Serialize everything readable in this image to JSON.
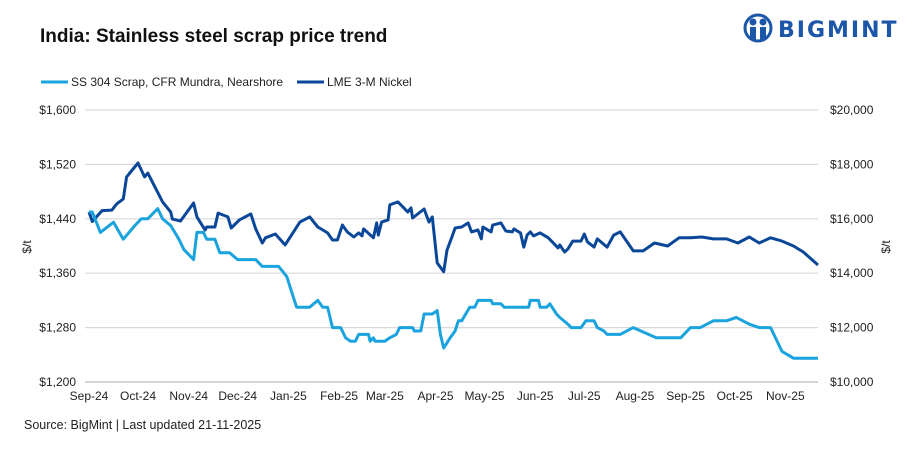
{
  "brand": {
    "name": "BIGMINT",
    "color": "#1c56a8"
  },
  "source": "Source: BigMint | Last updated 21-11-2025",
  "chart_data": {
    "type": "line",
    "title": "India: Stainless steel scrap price trend",
    "legend_position": "top-left",
    "grid": "horizontal",
    "x_ticks": [
      "Sep-24",
      "Oct-24",
      "Nov-24",
      "Dec-24",
      "Jan-25",
      "Feb-25",
      "Mar-25",
      "Apr-25",
      "May-25",
      "Jun-25",
      "Jul-25",
      "Aug-25",
      "Sep-25",
      "Oct-25",
      "Nov-25"
    ],
    "x_tick_dates": [
      "2024-09-01",
      "2024-10-01",
      "2024-11-01",
      "2024-12-01",
      "2025-01-01",
      "2025-02-01",
      "2025-03-01",
      "2025-04-01",
      "2025-05-01",
      "2025-06-01",
      "2025-07-01",
      "2025-08-01",
      "2025-09-01",
      "2025-10-01",
      "2025-11-01"
    ],
    "xlim": [
      "2024-09-01",
      "2025-11-21"
    ],
    "y_left": {
      "label": "$/t",
      "lim": [
        1200,
        1600
      ],
      "ticks": [
        "$1,200",
        "$1,280",
        "$1,360",
        "$1,440",
        "$1,520",
        "$1,600"
      ]
    },
    "y_right": {
      "label": "$/t",
      "lim": [
        10000,
        20000
      ],
      "ticks": [
        "$10,000",
        "$12,000",
        "$14,000",
        "$16,000",
        "$18,000",
        "$20,000"
      ]
    },
    "series": [
      {
        "name": "SS 304 Scrap, CFR Mundra, Nearshore",
        "axis": "left",
        "color": "#1ba3dd",
        "points": [
          [
            "2024-09-01",
            1450
          ],
          [
            "2024-09-03",
            1450
          ],
          [
            "2024-09-08",
            1420
          ],
          [
            "2024-09-16",
            1435
          ],
          [
            "2024-09-22",
            1410
          ],
          [
            "2024-09-29",
            1430
          ],
          [
            "2024-10-03",
            1440
          ],
          [
            "2024-10-07",
            1440
          ],
          [
            "2024-10-13",
            1455
          ],
          [
            "2024-10-16",
            1440
          ],
          [
            "2024-10-21",
            1430
          ],
          [
            "2024-10-26",
            1410
          ],
          [
            "2024-10-29",
            1395
          ],
          [
            "2024-11-04",
            1380
          ],
          [
            "2024-11-06",
            1420
          ],
          [
            "2024-11-10",
            1420
          ],
          [
            "2024-11-12",
            1410
          ],
          [
            "2024-11-17",
            1410
          ],
          [
            "2024-11-20",
            1390
          ],
          [
            "2024-11-26",
            1390
          ],
          [
            "2024-12-01",
            1380
          ],
          [
            "2024-12-12",
            1380
          ],
          [
            "2024-12-16",
            1370
          ],
          [
            "2024-12-26",
            1370
          ],
          [
            "2024-12-31",
            1355
          ],
          [
            "2025-01-02",
            1340
          ],
          [
            "2025-01-06",
            1310
          ],
          [
            "2025-01-14",
            1310
          ],
          [
            "2025-01-19",
            1320
          ],
          [
            "2025-01-22",
            1310
          ],
          [
            "2025-01-25",
            1310
          ],
          [
            "2025-01-28",
            1280
          ],
          [
            "2025-02-02",
            1280
          ],
          [
            "2025-02-05",
            1265
          ],
          [
            "2025-02-08",
            1260
          ],
          [
            "2025-02-11",
            1260
          ],
          [
            "2025-02-13",
            1270
          ],
          [
            "2025-02-19",
            1270
          ],
          [
            "2025-02-20",
            1260
          ],
          [
            "2025-02-22",
            1265
          ],
          [
            "2025-02-23",
            1260
          ],
          [
            "2025-03-01",
            1260
          ],
          [
            "2025-03-04",
            1265
          ],
          [
            "2025-03-08",
            1270
          ],
          [
            "2025-03-10",
            1280
          ],
          [
            "2025-03-18",
            1280
          ],
          [
            "2025-03-19",
            1275
          ],
          [
            "2025-03-23",
            1275
          ],
          [
            "2025-03-25",
            1300
          ],
          [
            "2025-03-30",
            1300
          ],
          [
            "2025-04-02",
            1305
          ],
          [
            "2025-04-04",
            1270
          ],
          [
            "2025-04-06",
            1250
          ],
          [
            "2025-04-10",
            1265
          ],
          [
            "2025-04-13",
            1275
          ],
          [
            "2025-04-15",
            1290
          ],
          [
            "2025-04-17",
            1290
          ],
          [
            "2025-04-22",
            1310
          ],
          [
            "2025-04-25",
            1310
          ],
          [
            "2025-04-27",
            1320
          ],
          [
            "2025-05-05",
            1320
          ],
          [
            "2025-05-06",
            1315
          ],
          [
            "2025-05-11",
            1315
          ],
          [
            "2025-05-13",
            1310
          ],
          [
            "2025-05-28",
            1310
          ],
          [
            "2025-05-29",
            1320
          ],
          [
            "2025-06-03",
            1320
          ],
          [
            "2025-06-04",
            1310
          ],
          [
            "2025-06-08",
            1310
          ],
          [
            "2025-06-10",
            1315
          ],
          [
            "2025-06-14",
            1300
          ],
          [
            "2025-06-16",
            1295
          ],
          [
            "2025-06-21",
            1285
          ],
          [
            "2025-06-23",
            1280
          ],
          [
            "2025-06-29",
            1280
          ],
          [
            "2025-07-02",
            1290
          ],
          [
            "2025-07-07",
            1290
          ],
          [
            "2025-07-09",
            1280
          ],
          [
            "2025-07-13",
            1275
          ],
          [
            "2025-07-15",
            1270
          ],
          [
            "2025-07-23",
            1270
          ],
          [
            "2025-07-31",
            1280
          ],
          [
            "2025-08-14",
            1265
          ],
          [
            "2025-08-29",
            1265
          ],
          [
            "2025-09-04",
            1280
          ],
          [
            "2025-09-10",
            1280
          ],
          [
            "2025-09-18",
            1290
          ],
          [
            "2025-09-26",
            1290
          ],
          [
            "2025-10-02",
            1295
          ],
          [
            "2025-10-10",
            1285
          ],
          [
            "2025-10-16",
            1280
          ],
          [
            "2025-10-23",
            1280
          ],
          [
            "2025-10-30",
            1245
          ],
          [
            "2025-11-06",
            1235
          ],
          [
            "2025-11-21",
            1235
          ]
        ]
      },
      {
        "name": "LME 3-M Nickel",
        "axis": "right",
        "color": "#0b4798",
        "points": [
          [
            "2024-09-01",
            16250
          ],
          [
            "2024-09-03",
            15900
          ],
          [
            "2024-09-09",
            16300
          ],
          [
            "2024-09-15",
            16320
          ],
          [
            "2024-09-18",
            16550
          ],
          [
            "2024-09-22",
            16730
          ],
          [
            "2024-09-24",
            17540
          ],
          [
            "2024-10-01",
            18050
          ],
          [
            "2024-10-05",
            17540
          ],
          [
            "2024-10-07",
            17680
          ],
          [
            "2024-10-16",
            16620
          ],
          [
            "2024-10-21",
            16250
          ],
          [
            "2024-10-22",
            15990
          ],
          [
            "2024-10-27",
            15920
          ],
          [
            "2024-11-04",
            16580
          ],
          [
            "2024-11-06",
            16070
          ],
          [
            "2024-11-11",
            15590
          ],
          [
            "2024-11-12",
            15700
          ],
          [
            "2024-11-17",
            15700
          ],
          [
            "2024-11-19",
            16210
          ],
          [
            "2024-11-25",
            16070
          ],
          [
            "2024-11-27",
            15660
          ],
          [
            "2024-12-02",
            15960
          ],
          [
            "2024-12-09",
            16180
          ],
          [
            "2024-12-12",
            15630
          ],
          [
            "2024-12-16",
            15110
          ],
          [
            "2024-12-18",
            15300
          ],
          [
            "2024-12-24",
            15440
          ],
          [
            "2024-12-30",
            15040
          ],
          [
            "2025-01-08",
            15880
          ],
          [
            "2025-01-14",
            16070
          ],
          [
            "2025-01-19",
            15700
          ],
          [
            "2025-01-25",
            15480
          ],
          [
            "2025-01-28",
            15220
          ],
          [
            "2025-01-31",
            15220
          ],
          [
            "2025-02-03",
            15770
          ],
          [
            "2025-02-06",
            15520
          ],
          [
            "2025-02-10",
            15330
          ],
          [
            "2025-02-13",
            15480
          ],
          [
            "2025-02-15",
            15370
          ],
          [
            "2025-02-16",
            15630
          ],
          [
            "2025-02-22",
            15300
          ],
          [
            "2025-02-24",
            15850
          ],
          [
            "2025-02-25",
            15400
          ],
          [
            "2025-02-27",
            15880
          ],
          [
            "2025-03-03",
            15960
          ],
          [
            "2025-03-04",
            16510
          ],
          [
            "2025-03-09",
            16620
          ],
          [
            "2025-03-12",
            16440
          ],
          [
            "2025-03-15",
            16250
          ],
          [
            "2025-03-17",
            16400
          ],
          [
            "2025-03-18",
            16030
          ],
          [
            "2025-03-25",
            16360
          ],
          [
            "2025-03-28",
            15880
          ],
          [
            "2025-03-30",
            16070
          ],
          [
            "2025-04-02",
            14380
          ],
          [
            "2025-04-06",
            14050
          ],
          [
            "2025-04-08",
            14850
          ],
          [
            "2025-04-11",
            15330
          ],
          [
            "2025-04-13",
            15660
          ],
          [
            "2025-04-17",
            15700
          ],
          [
            "2025-04-21",
            15850
          ],
          [
            "2025-04-23",
            15520
          ],
          [
            "2025-04-27",
            15590
          ],
          [
            "2025-04-29",
            15260
          ],
          [
            "2025-04-30",
            15700
          ],
          [
            "2025-05-05",
            15520
          ],
          [
            "2025-05-06",
            15770
          ],
          [
            "2025-05-11",
            15850
          ],
          [
            "2025-05-14",
            15550
          ],
          [
            "2025-05-18",
            15520
          ],
          [
            "2025-05-19",
            15630
          ],
          [
            "2025-05-21",
            15550
          ],
          [
            "2025-05-23",
            15480
          ],
          [
            "2025-05-25",
            14960
          ],
          [
            "2025-05-27",
            15400
          ],
          [
            "2025-05-29",
            15520
          ],
          [
            "2025-05-31",
            15370
          ],
          [
            "2025-06-04",
            15480
          ],
          [
            "2025-06-09",
            15300
          ],
          [
            "2025-06-15",
            14930
          ],
          [
            "2025-06-16",
            15040
          ],
          [
            "2025-06-19",
            14780
          ],
          [
            "2025-06-21",
            14890
          ],
          [
            "2025-06-24",
            15180
          ],
          [
            "2025-06-29",
            15180
          ],
          [
            "2025-07-01",
            15440
          ],
          [
            "2025-07-03",
            15150
          ],
          [
            "2025-07-07",
            14960
          ],
          [
            "2025-07-09",
            15260
          ],
          [
            "2025-07-12",
            15110
          ],
          [
            "2025-07-15",
            14960
          ],
          [
            "2025-07-19",
            15400
          ],
          [
            "2025-07-23",
            15520
          ],
          [
            "2025-07-31",
            14820
          ],
          [
            "2025-08-06",
            14820
          ],
          [
            "2025-08-13",
            15110
          ],
          [
            "2025-08-21",
            15000
          ],
          [
            "2025-08-28",
            15300
          ],
          [
            "2025-09-04",
            15300
          ],
          [
            "2025-09-11",
            15330
          ],
          [
            "2025-09-18",
            15260
          ],
          [
            "2025-09-26",
            15260
          ],
          [
            "2025-10-03",
            15110
          ],
          [
            "2025-10-10",
            15330
          ],
          [
            "2025-10-16",
            15110
          ],
          [
            "2025-10-23",
            15300
          ],
          [
            "2025-10-30",
            15180
          ],
          [
            "2025-11-06",
            15000
          ],
          [
            "2025-11-12",
            14780
          ],
          [
            "2025-11-21",
            14300
          ]
        ]
      }
    ]
  }
}
